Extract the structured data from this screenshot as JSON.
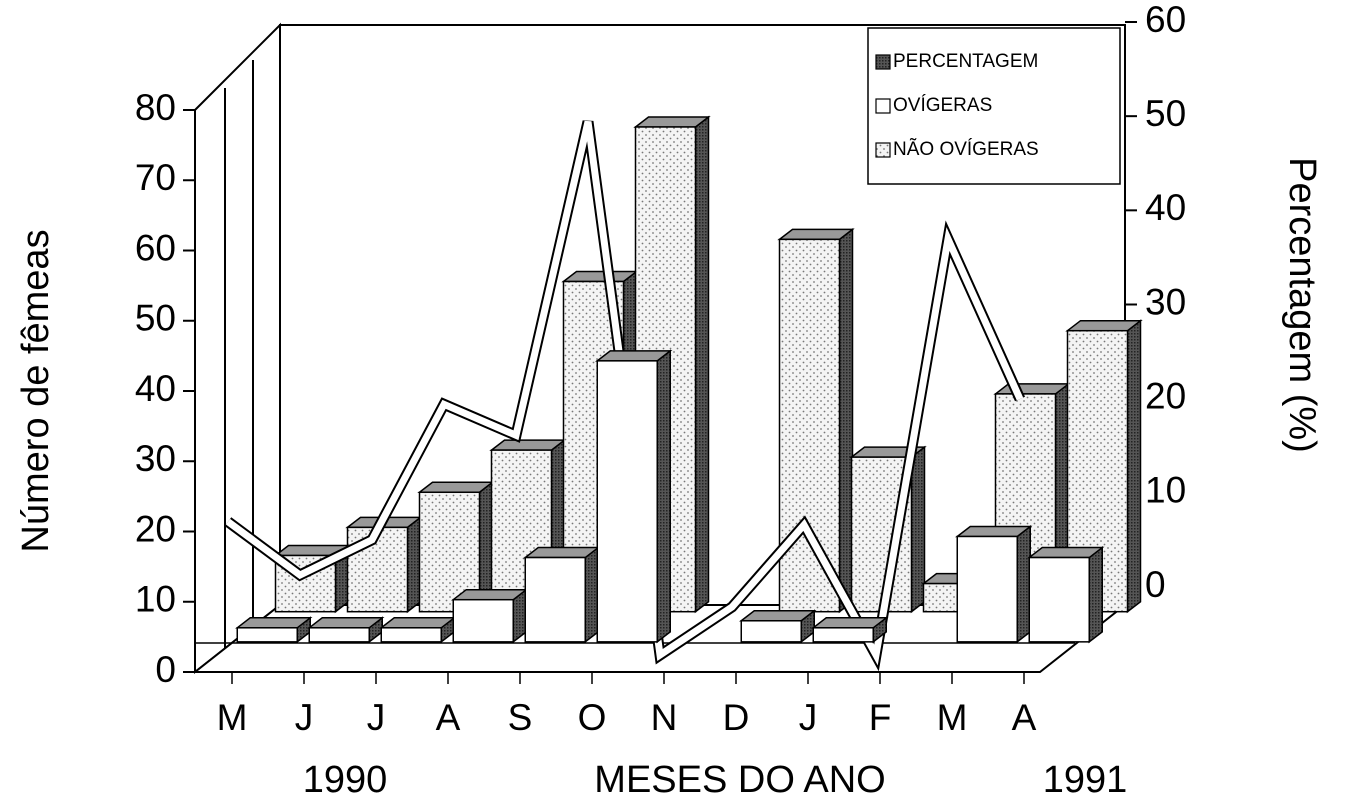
{
  "chart_data": {
    "type": "bar",
    "y_label": "Número de fêmeas",
    "y2_label": "Percentagem (%)",
    "x_label": "MESES DO ANO",
    "x_annotations": [
      "1990",
      "1991"
    ],
    "categories": [
      "M",
      "J",
      "J",
      "A",
      "S",
      "O",
      "N",
      "D",
      "J",
      "F",
      "M",
      "A"
    ],
    "series": [
      {
        "name": "PERCENTAGEM",
        "type": "line",
        "axis": "y2",
        "color": "#ffffff",
        "values": [
          12.5,
          7.5,
          10.8,
          23.5,
          20.6,
          50,
          0,
          4.5,
          12.2,
          0,
          39,
          24
        ]
      },
      {
        "name": "OVÍGERAS",
        "color": "#ffffff",
        "values": [
          2,
          2,
          2,
          6,
          12,
          40,
          0,
          3,
          2,
          0,
          15,
          12
        ]
      },
      {
        "name": "NÃO OVÍGERAS",
        "color": "#e8e8e8",
        "values": [
          8,
          12,
          17,
          23,
          47,
          69,
          0,
          53,
          22,
          4,
          31,
          40
        ]
      }
    ],
    "ylim": [
      0,
      80
    ],
    "yticks": [
      0,
      10,
      20,
      30,
      40,
      50,
      60,
      70,
      80
    ],
    "y2lim": [
      0,
      60
    ],
    "y2ticks": [
      0,
      10,
      20,
      30,
      40,
      50,
      60
    ],
    "legend": "upper right"
  }
}
